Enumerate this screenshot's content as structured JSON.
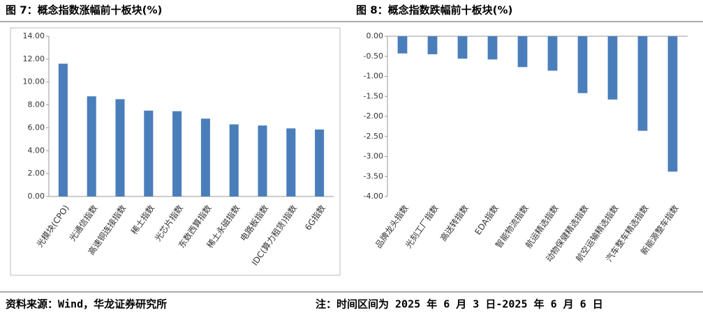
{
  "chart_data": [
    {
      "type": "bar",
      "title": "图 7：概念指数涨幅前十板块(%)",
      "categories": [
        "光模块(CPO)",
        "光通信指数",
        "高速铜连接指数",
        "稀土指数",
        "光芯片指数",
        "东数西算指数",
        "稀土永磁指数",
        "电路板指数",
        "IDC(算力租赁)指数",
        "6G指数"
      ],
      "values": [
        11.6,
        8.75,
        8.5,
        7.5,
        7.45,
        6.8,
        6.3,
        6.2,
        5.95,
        5.85
      ],
      "color": "#4a7ebb",
      "ylim": [
        0,
        14
      ],
      "yticks": [
        {
          "value": 0,
          "label": "0.00"
        },
        {
          "value": 2,
          "label": "2.00"
        },
        {
          "value": 4,
          "label": "4.00"
        },
        {
          "value": 6,
          "label": "6.00"
        },
        {
          "value": 8,
          "label": "8.00"
        },
        {
          "value": 10,
          "label": "10.00"
        },
        {
          "value": 12,
          "label": "12.00"
        },
        {
          "value": 14,
          "label": "14.00"
        }
      ],
      "grid": false
    },
    {
      "type": "bar",
      "title": "图 8：概念指数跌幅前十板块(%)",
      "categories": [
        "品牌龙头指数",
        "光刻工厂指数",
        "高送转指数",
        "EDA指数",
        "智能物流指数",
        "航运精选指数",
        "动物保健精选指数",
        "航空运输精选指数",
        "汽车整车精选指数",
        "新能源整车指数"
      ],
      "values": [
        -0.43,
        -0.45,
        -0.56,
        -0.58,
        -0.77,
        -0.86,
        -1.42,
        -1.58,
        -2.36,
        -3.38
      ],
      "color": "#4a7ebb",
      "ylim": [
        -4,
        0
      ],
      "yticks": [
        {
          "value": 0,
          "label": "0.00"
        },
        {
          "value": -0.5,
          "label": "-0.50"
        },
        {
          "value": -1,
          "label": "-1.00"
        },
        {
          "value": -1.5,
          "label": "-1.50"
        },
        {
          "value": -2,
          "label": "-2.00"
        },
        {
          "value": -2.5,
          "label": "-2.50"
        },
        {
          "value": -3,
          "label": "-3.00"
        },
        {
          "value": -3.5,
          "label": "-3.50"
        },
        {
          "value": -4,
          "label": "-4.00"
        }
      ],
      "grid": false
    }
  ],
  "footer": {
    "source": "资料来源：Wind，华龙证券研究所",
    "note": "注：时间区间为 2025 年 6 月 3 日-2025 年 6 月 6 日"
  }
}
